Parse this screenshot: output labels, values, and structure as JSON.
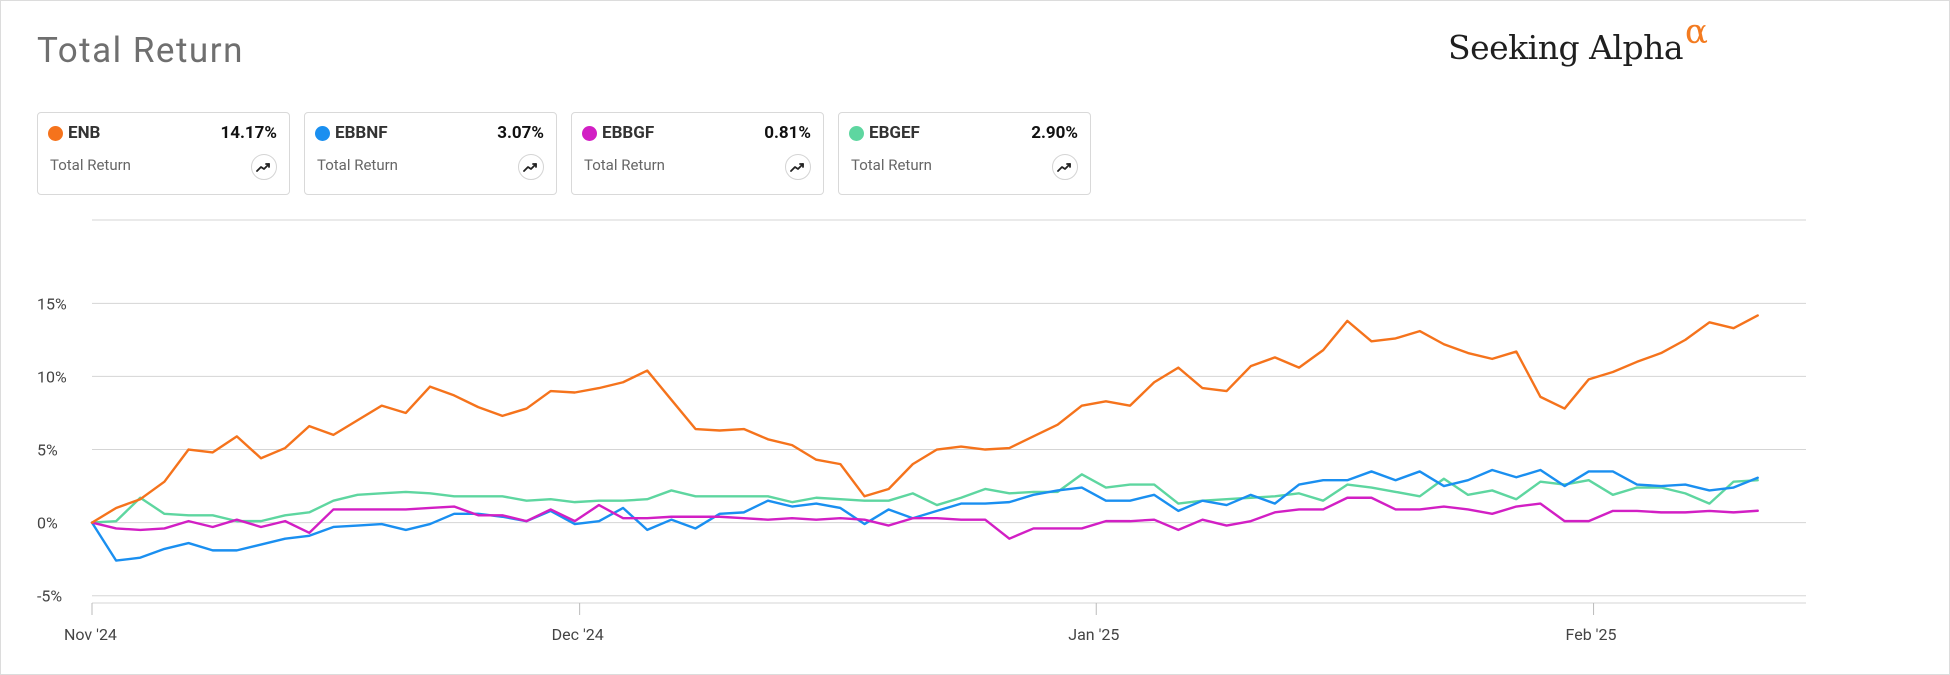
{
  "header": {
    "title": "Total Return"
  },
  "logo": {
    "text": "Seeking Alpha",
    "symbol": "α"
  },
  "legend": [
    {
      "ticker": "ENB",
      "value": "14.17%",
      "sublabel": "Total Return",
      "color": "#f5731c",
      "icon": "trend-icon"
    },
    {
      "ticker": "EBBNF",
      "value": "3.07%",
      "sublabel": "Total Return",
      "color": "#1a8ff0",
      "icon": "trend-icon"
    },
    {
      "ticker": "EBBGF",
      "value": "0.81%",
      "sublabel": "Total Return",
      "color": "#d21fc4",
      "icon": "trend-icon"
    },
    {
      "ticker": "EBGEF",
      "value": "2.90%",
      "sublabel": "Total Return",
      "color": "#5ed6a0",
      "icon": "trend-icon"
    }
  ],
  "chart_data": {
    "type": "line",
    "title": "Total Return",
    "ylim": [
      -5.5,
      20.7
    ],
    "ytick_values": [
      -5,
      0,
      5,
      10,
      15
    ],
    "ytick_labels": [
      "-5%",
      "0%",
      "5%",
      "10%",
      "15%"
    ],
    "xlim": [
      0,
      71
    ],
    "xtick_values": [
      0,
      20.2,
      41.6,
      62.2
    ],
    "xtick_labels": [
      "Nov '24",
      "Dec '24",
      "Jan '25",
      "Feb '25"
    ],
    "grid": true,
    "series": [
      {
        "name": "ENB",
        "color": "#f5731c",
        "values": [
          0,
          1.0,
          1.6,
          2.8,
          5.0,
          4.8,
          5.9,
          4.4,
          5.1,
          6.6,
          6.0,
          7.0,
          8.0,
          7.5,
          9.3,
          8.7,
          7.9,
          7.3,
          7.8,
          9.0,
          8.9,
          9.2,
          9.6,
          10.4,
          8.4,
          6.4,
          6.3,
          6.4,
          5.7,
          5.3,
          4.3,
          4.0,
          1.8,
          2.3,
          4.0,
          5.0,
          5.2,
          5.0,
          5.1,
          5.9,
          6.7,
          8.0,
          8.3,
          8.0,
          9.6,
          10.6,
          9.2,
          9.0,
          10.7,
          11.3,
          10.6,
          11.8,
          13.8,
          12.4,
          12.6,
          13.1,
          12.2,
          11.6,
          11.2,
          11.7,
          8.6,
          7.8,
          9.8,
          10.3,
          11.0,
          11.6,
          12.5,
          13.7,
          13.3,
          14.17
        ]
      },
      {
        "name": "EBBNF",
        "color": "#1a8ff0",
        "values": [
          0,
          -2.6,
          -2.4,
          -1.8,
          -1.4,
          -1.9,
          -1.9,
          -1.5,
          -1.1,
          -0.9,
          -0.3,
          -0.2,
          -0.1,
          -0.5,
          -0.1,
          0.6,
          0.6,
          0.4,
          0.1,
          0.8,
          -0.1,
          0.1,
          1.0,
          -0.5,
          0.2,
          -0.4,
          0.6,
          0.7,
          1.5,
          1.1,
          1.3,
          1.0,
          -0.1,
          0.9,
          0.3,
          0.8,
          1.3,
          1.3,
          1.4,
          1.9,
          2.2,
          2.4,
          1.5,
          1.5,
          1.9,
          0.8,
          1.5,
          1.2,
          1.9,
          1.3,
          2.6,
          2.9,
          2.9,
          3.5,
          2.9,
          3.5,
          2.5,
          2.9,
          3.6,
          3.1,
          3.6,
          2.5,
          3.5,
          3.5,
          2.6,
          2.5,
          2.6,
          2.2,
          2.4,
          3.07
        ]
      },
      {
        "name": "EBBGF",
        "color": "#d21fc4",
        "values": [
          0,
          -0.4,
          -0.5,
          -0.4,
          0.1,
          -0.3,
          0.2,
          -0.3,
          0.1,
          -0.7,
          0.9,
          0.9,
          0.9,
          0.9,
          1.0,
          1.1,
          0.5,
          0.5,
          0.1,
          0.9,
          0.1,
          1.2,
          0.3,
          0.3,
          0.4,
          0.4,
          0.4,
          0.3,
          0.2,
          0.3,
          0.2,
          0.3,
          0.2,
          -0.2,
          0.3,
          0.3,
          0.2,
          0.2,
          -1.1,
          -0.4,
          -0.4,
          -0.4,
          0.1,
          0.1,
          0.2,
          -0.5,
          0.2,
          -0.2,
          0.1,
          0.7,
          0.9,
          0.9,
          1.7,
          1.7,
          0.9,
          0.9,
          1.1,
          0.9,
          0.6,
          1.1,
          1.3,
          0.1,
          0.1,
          0.8,
          0.8,
          0.7,
          0.7,
          0.8,
          0.7,
          0.81
        ]
      },
      {
        "name": "EBGEF",
        "color": "#5ed6a0",
        "values": [
          0,
          0.1,
          1.7,
          0.6,
          0.5,
          0.5,
          0.1,
          0.1,
          0.5,
          0.7,
          1.5,
          1.9,
          2.0,
          2.1,
          2.0,
          1.8,
          1.8,
          1.8,
          1.5,
          1.6,
          1.4,
          1.5,
          1.5,
          1.6,
          2.2,
          1.8,
          1.8,
          1.8,
          1.8,
          1.4,
          1.7,
          1.6,
          1.5,
          1.5,
          2.0,
          1.2,
          1.7,
          2.3,
          2.0,
          2.1,
          2.1,
          3.3,
          2.4,
          2.6,
          2.6,
          1.3,
          1.5,
          1.6,
          1.7,
          1.8,
          2.0,
          1.5,
          2.6,
          2.4,
          2.1,
          1.8,
          3.0,
          1.9,
          2.2,
          1.6,
          2.8,
          2.6,
          2.9,
          1.9,
          2.4,
          2.4,
          2.0,
          1.3,
          2.8,
          2.9
        ]
      }
    ]
  }
}
